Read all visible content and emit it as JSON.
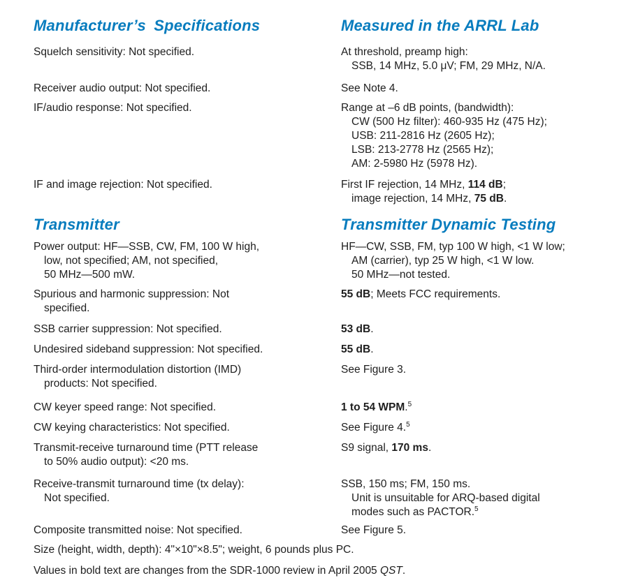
{
  "colors": {
    "accent": "#077cbe",
    "text": "#1e1e1e"
  },
  "headers": {
    "left": "Manufacturer’s Specifications",
    "right": "Measured in the ARRL Lab"
  },
  "sections": {
    "transmitter_left": "Transmitter",
    "transmitter_right": "Transmitter Dynamic Testing"
  },
  "receiver_rows": [
    {
      "left": [
        {
          "indent": 0,
          "segs": [
            {
              "t": "Squelch sensitivity: Not specified."
            }
          ]
        }
      ],
      "right": [
        {
          "indent": 0,
          "segs": [
            {
              "t": "At threshold, preamp high:"
            }
          ]
        },
        {
          "indent": 1,
          "segs": [
            {
              "t": "SSB, 14 MHz, 5.0 μV; FM, 29 MHz, N/A."
            }
          ]
        }
      ]
    },
    {
      "left": [
        {
          "indent": 0,
          "segs": [
            {
              "t": "Receiver audio output: Not specified."
            }
          ]
        }
      ],
      "right": [
        {
          "indent": 0,
          "segs": [
            {
              "t": "See Note 4."
            }
          ]
        }
      ]
    },
    {
      "left": [
        {
          "indent": 0,
          "segs": [
            {
              "t": "IF/audio response: Not specified."
            }
          ]
        }
      ],
      "right": [
        {
          "indent": 0,
          "segs": [
            {
              "t": "Range at –6 dB points, (bandwidth):"
            }
          ]
        },
        {
          "indent": 1,
          "segs": [
            {
              "t": "CW (500 Hz filter): 460-935 Hz (475 Hz);"
            }
          ]
        },
        {
          "indent": 1,
          "segs": [
            {
              "t": "USB: 211-2816 Hz (2605 Hz);"
            }
          ]
        },
        {
          "indent": 1,
          "segs": [
            {
              "t": "LSB: 213-2778 Hz (2565 Hz);"
            }
          ]
        },
        {
          "indent": 1,
          "segs": [
            {
              "t": "AM: 2-5980 Hz (5978 Hz)."
            }
          ]
        }
      ]
    },
    {
      "left": [
        {
          "indent": 0,
          "segs": [
            {
              "t": "IF and image rejection: Not specified."
            }
          ]
        }
      ],
      "right": [
        {
          "indent": 0,
          "segs": [
            {
              "t": "First IF rejection, 14 MHz, "
            },
            {
              "t": "114 dB",
              "b": true
            },
            {
              "t": ";"
            }
          ]
        },
        {
          "indent": 1,
          "segs": [
            {
              "t": "image rejection, 14 MHz, "
            },
            {
              "t": "75 dB",
              "b": true
            },
            {
              "t": "."
            }
          ]
        }
      ]
    }
  ],
  "transmitter_rows": [
    {
      "left": [
        {
          "indent": 0,
          "segs": [
            {
              "t": "Power output: HF—SSB, CW, FM, 100 W high,"
            }
          ]
        },
        {
          "indent": 1,
          "segs": [
            {
              "t": "low, not specified; AM, not specified,"
            }
          ]
        },
        {
          "indent": 1,
          "segs": [
            {
              "t": "50 MHz—500 mW."
            }
          ]
        }
      ],
      "right": [
        {
          "indent": 0,
          "segs": [
            {
              "t": "HF—CW, SSB, FM, typ 100 W high, <1 W low;"
            }
          ]
        },
        {
          "indent": 1,
          "segs": [
            {
              "t": "AM (carrier), typ 25 W high, <1 W low."
            }
          ]
        },
        {
          "indent": 1,
          "segs": [
            {
              "t": "50 MHz—not tested."
            }
          ]
        }
      ]
    },
    {
      "left": [
        {
          "indent": 0,
          "segs": [
            {
              "t": "Spurious and harmonic suppression: Not"
            }
          ]
        },
        {
          "indent": 1,
          "segs": [
            {
              "t": "specified."
            }
          ]
        }
      ],
      "right": [
        {
          "indent": 0,
          "segs": [
            {
              "t": "55 dB",
              "b": true
            },
            {
              "t": "; Meets FCC requirements."
            }
          ]
        }
      ]
    },
    {
      "left": [
        {
          "indent": 0,
          "segs": [
            {
              "t": "SSB carrier suppression: Not specified."
            }
          ]
        }
      ],
      "right": [
        {
          "indent": 0,
          "segs": [
            {
              "t": "53 dB",
              "b": true
            },
            {
              "t": "."
            }
          ]
        }
      ]
    },
    {
      "left": [
        {
          "indent": 0,
          "segs": [
            {
              "t": "Undesired sideband suppression: Not specified."
            }
          ]
        }
      ],
      "right": [
        {
          "indent": 0,
          "segs": [
            {
              "t": "55 dB",
              "b": true
            },
            {
              "t": "."
            }
          ]
        }
      ]
    },
    {
      "left": [
        {
          "indent": 0,
          "segs": [
            {
              "t": "Third-order intermodulation distortion (IMD)"
            }
          ]
        },
        {
          "indent": 1,
          "segs": [
            {
              "t": "products: Not specified."
            }
          ]
        }
      ],
      "right": [
        {
          "indent": 0,
          "segs": [
            {
              "t": "See Figure 3."
            }
          ]
        }
      ]
    },
    {
      "left": [
        {
          "indent": 0,
          "segs": [
            {
              "t": "CW keyer speed range: Not specified."
            }
          ]
        }
      ],
      "right": [
        {
          "indent": 0,
          "segs": [
            {
              "t": "1 to 54 WPM",
              "b": true
            },
            {
              "t": "."
            },
            {
              "t": "5",
              "sup": true
            }
          ]
        }
      ]
    },
    {
      "left": [
        {
          "indent": 0,
          "segs": [
            {
              "t": "CW keying characteristics: Not specified."
            }
          ]
        }
      ],
      "right": [
        {
          "indent": 0,
          "segs": [
            {
              "t": "See Figure 4."
            },
            {
              "t": "5",
              "sup": true
            }
          ]
        }
      ]
    },
    {
      "left": [
        {
          "indent": 0,
          "segs": [
            {
              "t": "Transmit-receive turnaround time (PTT release"
            }
          ]
        },
        {
          "indent": 1,
          "segs": [
            {
              "t": "to 50% audio output): <20 ms."
            }
          ]
        }
      ],
      "right": [
        {
          "indent": 0,
          "segs": [
            {
              "t": "S9 signal, "
            },
            {
              "t": "170 ms",
              "b": true
            },
            {
              "t": "."
            }
          ]
        }
      ]
    },
    {
      "left": [
        {
          "indent": 0,
          "segs": [
            {
              "t": "Receive-transmit turnaround time (tx delay):"
            }
          ]
        },
        {
          "indent": 1,
          "segs": [
            {
              "t": "Not specified."
            }
          ]
        }
      ],
      "right": [
        {
          "indent": 0,
          "segs": [
            {
              "t": "SSB, 150 ms; FM, 150 ms."
            }
          ]
        },
        {
          "indent": 1,
          "segs": [
            {
              "t": "Unit is unsuitable for ARQ-based digital"
            }
          ]
        },
        {
          "indent": 1,
          "segs": [
            {
              "t": "modes such as PACTOR."
            },
            {
              "t": "5",
              "sup": true
            }
          ]
        }
      ]
    },
    {
      "left": [
        {
          "indent": 0,
          "segs": [
            {
              "t": "Composite transmitted noise: Not specified."
            }
          ]
        }
      ],
      "right": [
        {
          "indent": 0,
          "segs": [
            {
              "t": "See Figure 5."
            }
          ]
        }
      ]
    }
  ],
  "footer": {
    "size_line": "Size (height, width, depth): 4\"×10\"×8.5\"; weight, 6 pounds plus PC.",
    "note_pre": "Values in bold text are changes from the SDR-1000 review in April 2005 ",
    "note_italic": "QST",
    "note_post": "."
  }
}
